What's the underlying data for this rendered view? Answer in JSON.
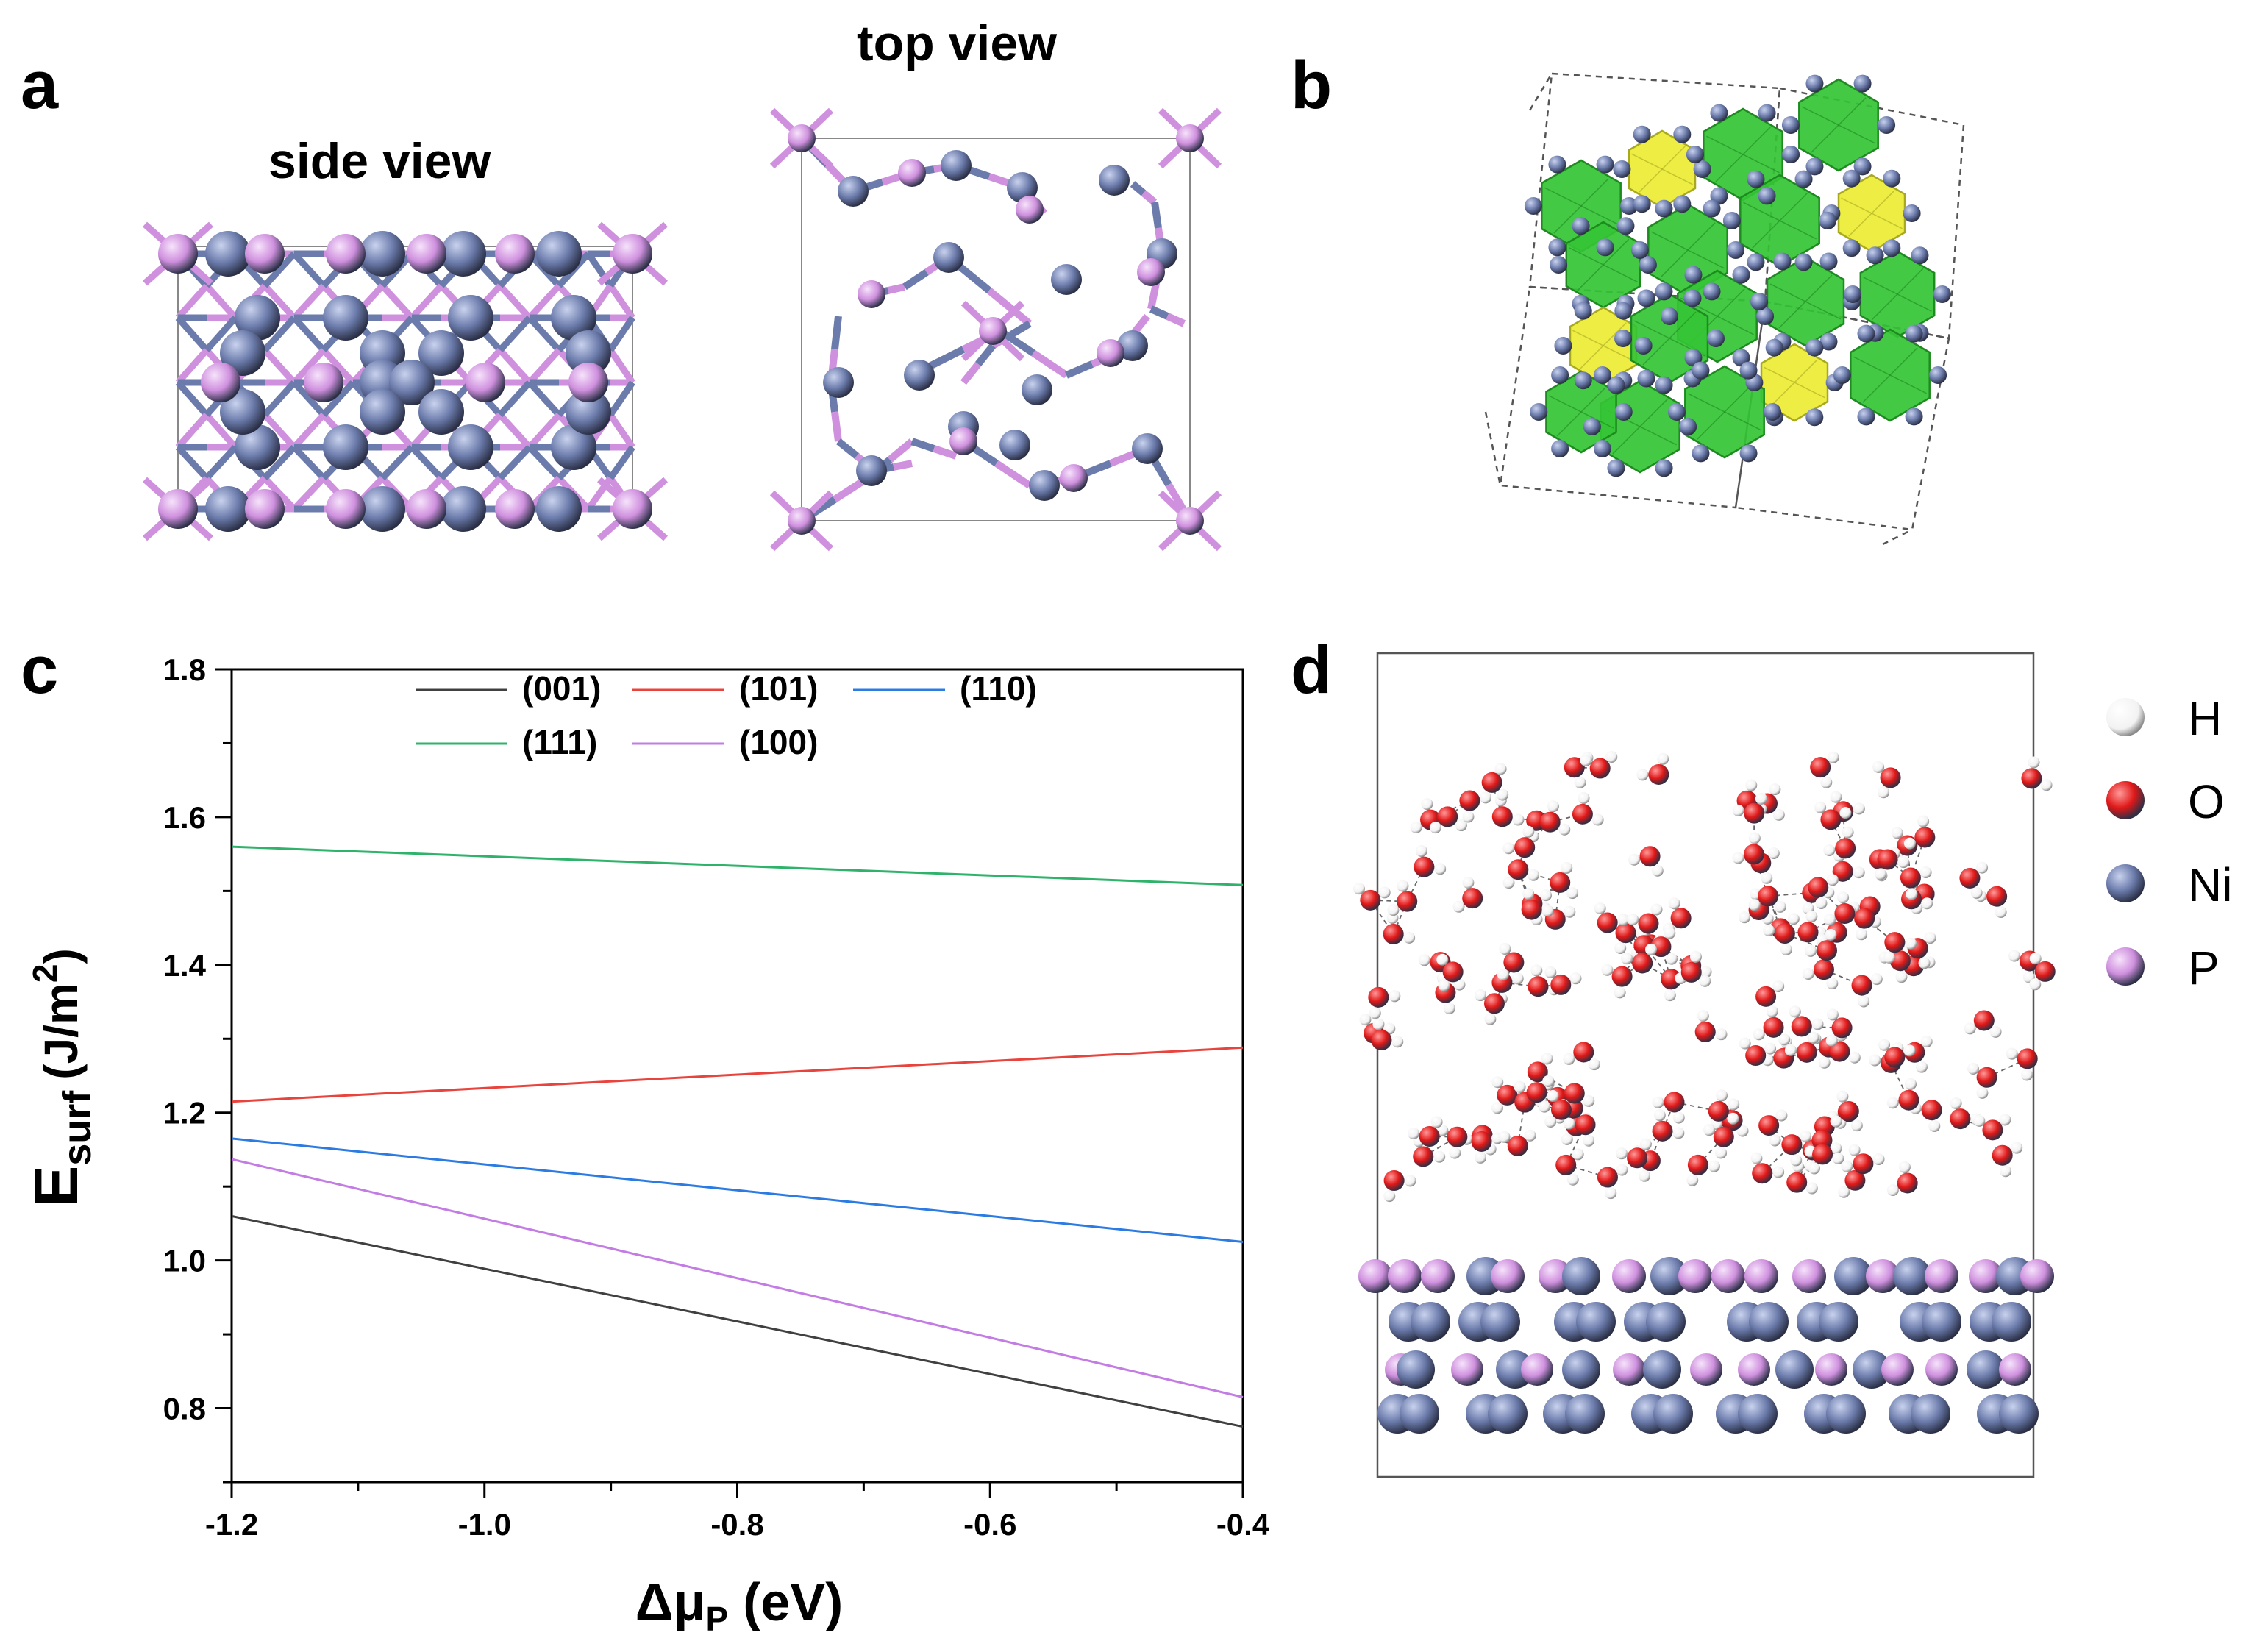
{
  "panels": {
    "a": {
      "letter": "a",
      "side_label": "side view",
      "top_label": "top view"
    },
    "b": {
      "letter": "b"
    },
    "c": {
      "letter": "c"
    },
    "d": {
      "letter": "d"
    }
  },
  "colors": {
    "ni": "#6b7bab",
    "p": "#cf90de",
    "o": "#e01818",
    "h": "#f2f2f2",
    "poly_green": "#34c435",
    "poly_yellow": "#ecec34"
  },
  "element_legend": [
    {
      "symbol": "H",
      "color": "#f2f2f2"
    },
    {
      "symbol": "O",
      "color": "#e01818"
    },
    {
      "symbol": "Ni",
      "color": "#6b7bab"
    },
    {
      "symbol": "P",
      "color": "#cf90de"
    }
  ],
  "chart_data": {
    "type": "line",
    "xlabel_main": "Δμ",
    "xlabel_sub": "P",
    "xlabel_unit": "(eV)",
    "ylabel_main": "E",
    "ylabel_sub": "surf",
    "ylabel_unit": "(J/m",
    "ylabel_sup": "2",
    "ylabel_close": ")",
    "xlim": [
      -1.2,
      -0.4
    ],
    "ylim": [
      0.7,
      1.8
    ],
    "xticks": [
      -1.2,
      -1.0,
      -0.8,
      -0.6,
      -0.4
    ],
    "xtick_labels": [
      "-1.2",
      "-1.0",
      "-0.8",
      "-0.6",
      "-0.4"
    ],
    "yticks": [
      0.8,
      1.0,
      1.2,
      1.4,
      1.6,
      1.8
    ],
    "ytick_labels": [
      "0.8",
      "1.0",
      "1.2",
      "1.4",
      "1.6",
      "1.8"
    ],
    "series": [
      {
        "name": "(001)",
        "color": "#404040",
        "x": [
          -1.2,
          -0.4
        ],
        "values": [
          1.06,
          0.775
        ]
      },
      {
        "name": "(101)",
        "color": "#e8433c",
        "x": [
          -1.2,
          -0.4
        ],
        "values": [
          1.215,
          1.288
        ]
      },
      {
        "name": "(110)",
        "color": "#2b7be3",
        "x": [
          -1.2,
          -0.4
        ],
        "values": [
          1.165,
          1.025
        ]
      },
      {
        "name": "(111)",
        "color": "#2fb36a",
        "x": [
          -1.2,
          -0.4
        ],
        "values": [
          1.56,
          1.508
        ]
      },
      {
        "name": "(100)",
        "color": "#c27ce3",
        "x": [
          -1.2,
          -0.4
        ],
        "values": [
          1.137,
          0.815
        ]
      }
    ],
    "legend_position": "top"
  }
}
